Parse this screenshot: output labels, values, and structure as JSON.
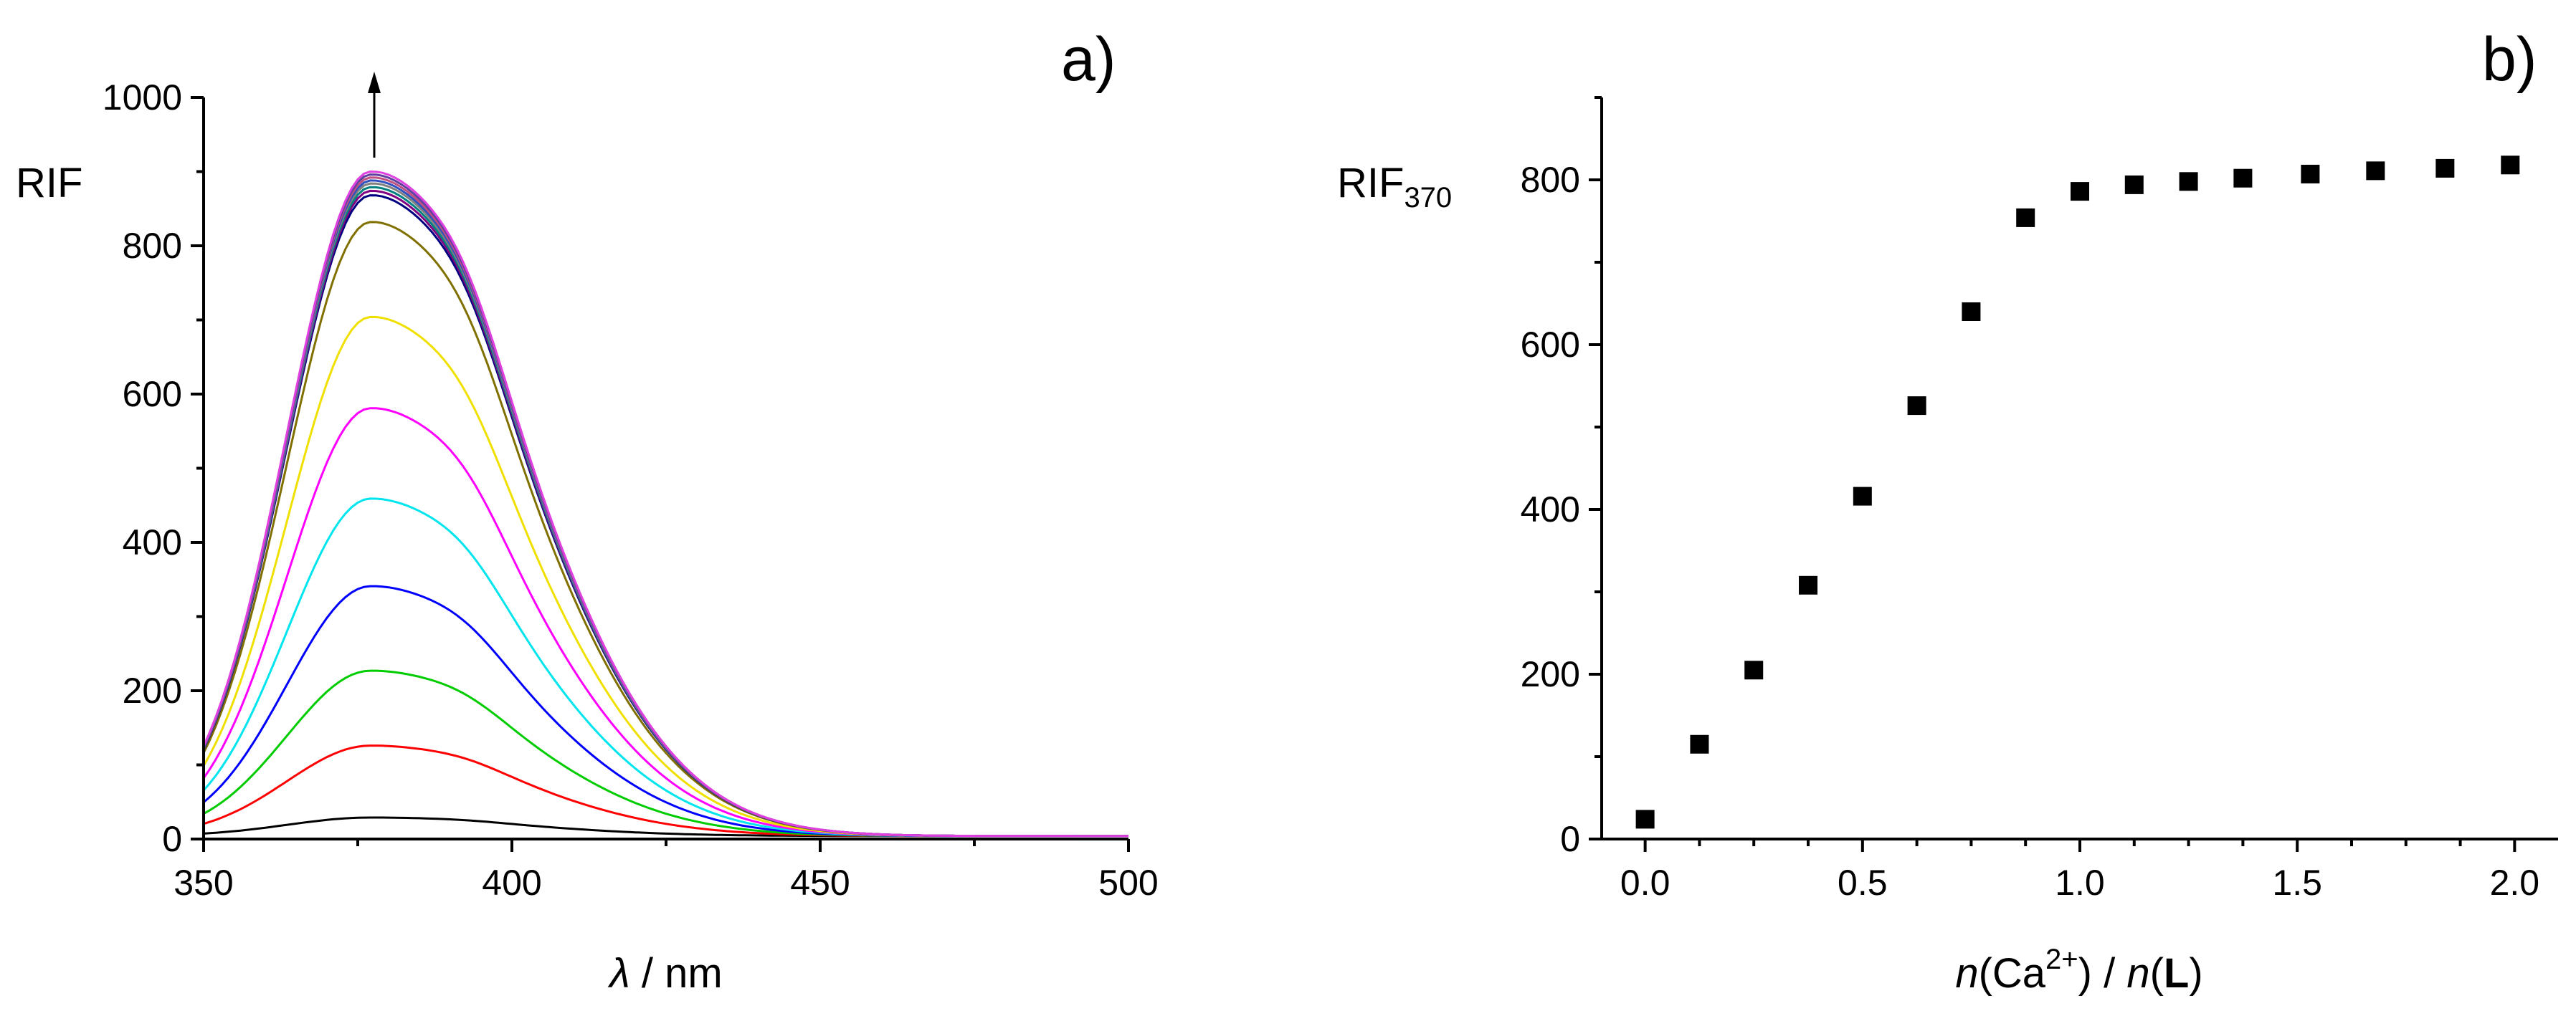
{
  "chart_data": [
    {
      "panel_label": "a)",
      "type": "line",
      "xlabel_symbol": "λ",
      "xlabel_rest": " / nm",
      "ylabel": "RIF",
      "xlim": [
        350,
        500
      ],
      "ylim": [
        0,
        1000
      ],
      "xticks": [
        "350",
        "400",
        "450",
        "500"
      ],
      "yticks": [
        "0",
        "200",
        "400",
        "600",
        "800",
        "1000"
      ],
      "annotation": "arrow pointing up above the emission maximum",
      "peak_wavelength": 377,
      "series": [
        {
          "peak": 25,
          "color": "#000000"
        },
        {
          "peak": 122,
          "color": "#ff0000"
        },
        {
          "peak": 223,
          "color": "#00cc00"
        },
        {
          "peak": 337,
          "color": "#0000ff"
        },
        {
          "peak": 455,
          "color": "#00e5ee"
        },
        {
          "peak": 577,
          "color": "#ff00ff"
        },
        {
          "peak": 700,
          "color": "#f0e000"
        },
        {
          "peak": 828,
          "color": "#807000"
        },
        {
          "peak": 864,
          "color": "#000080"
        },
        {
          "peak": 870,
          "color": "#800080"
        },
        {
          "peak": 875,
          "color": "#008080"
        },
        {
          "peak": 880,
          "color": "#808080"
        },
        {
          "peak": 884,
          "color": "#3050c0"
        },
        {
          "peak": 888,
          "color": "#c05080"
        },
        {
          "peak": 892,
          "color": "#6040a0"
        },
        {
          "peak": 896,
          "color": "#e040e0"
        }
      ]
    },
    {
      "panel_label": "b)",
      "type": "scatter",
      "xlabel_parts": [
        "n",
        "(Ca",
        "2+",
        ") / ",
        "n",
        "(",
        "L",
        ")"
      ],
      "ylabel": "RIF",
      "ylabel_subscript": "370",
      "xlim": [
        -0.1,
        2.1
      ],
      "ylim": [
        0,
        900
      ],
      "xticks": [
        "0.0",
        "0.5",
        "1.0",
        "1.5",
        "2.0"
      ],
      "yticks": [
        "0",
        "200",
        "400",
        "600",
        "800"
      ],
      "x": [
        0.0,
        0.125,
        0.25,
        0.375,
        0.5,
        0.625,
        0.75,
        0.875,
        1.0,
        1.125,
        1.25,
        1.375,
        1.53,
        1.68,
        1.84,
        1.99
      ],
      "y": [
        24,
        115,
        205,
        308,
        416,
        526,
        640,
        754,
        786,
        794,
        798,
        802,
        807,
        811,
        814,
        818
      ]
    }
  ]
}
